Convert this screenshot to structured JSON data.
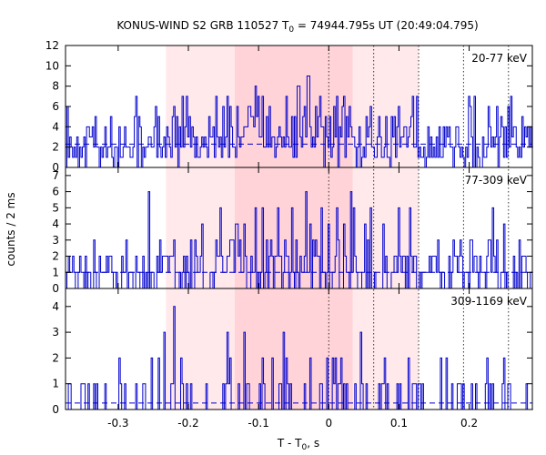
{
  "chart_data": {
    "type": "line",
    "title": "KONUS-WIND S2 GRB 110527 T0 = 74944.795s UT (20:49:04.795)",
    "title_parts": {
      "prefix": "KONUS-WIND S2 GRB 110527 T",
      "sub": "0",
      "suffix": " = 74944.795s UT (20:49:04.795)"
    },
    "xlabel_parts": {
      "prefix": "T - T",
      "sub": "0",
      "suffix": ", s"
    },
    "ylabel": "counts / 2 ms",
    "xlim": [
      -0.375,
      0.29
    ],
    "x_ticks": [
      -0.3,
      -0.2,
      -0.1,
      0,
      0.1,
      0.2
    ],
    "x_tick_labels": [
      "-0.3",
      "-0.2",
      "-0.1",
      "0",
      "0.1",
      "0.2"
    ],
    "bin_width": 0.002,
    "shaded_regions": [
      {
        "from": -0.232,
        "to": 0.128,
        "intensity": "light"
      },
      {
        "from": -0.134,
        "to": 0.034,
        "intensity": "dark"
      }
    ],
    "vertical_lines": [
      0,
      0.064,
      0.128,
      0.192,
      0.256
    ],
    "series_color": "#0000cc",
    "panels": [
      {
        "label": "20-77 keV",
        "ylim": [
          0,
          12
        ],
        "y_ticks": [
          0,
          2,
          4,
          6,
          8,
          10,
          12
        ],
        "background": 2.3,
        "peaks": [
          {
            "x": -0.22,
            "y": 6
          },
          {
            "x": -0.16,
            "y": 7
          },
          {
            "x": -0.15,
            "y": 6
          },
          {
            "x": -0.095,
            "y": 7
          },
          {
            "x": -0.06,
            "y": 7
          },
          {
            "x": -0.045,
            "y": 8
          },
          {
            "x": -0.03,
            "y": 9
          },
          {
            "x": -0.012,
            "y": 7
          },
          {
            "x": 0.012,
            "y": 7
          },
          {
            "x": 0.03,
            "y": 6
          },
          {
            "x": 0.06,
            "y": 6
          },
          {
            "x": 0.12,
            "y": 7
          },
          {
            "x": 0.2,
            "y": 7
          },
          {
            "x": 0.24,
            "y": 6
          }
        ]
      },
      {
        "label": "77-309 keV",
        "ylim": [
          0,
          7.5
        ],
        "y_ticks": [
          0,
          1,
          2,
          3,
          4,
          5,
          6,
          7
        ],
        "background": 1.0,
        "peaks": [
          {
            "x": -0.24,
            "y": 3
          },
          {
            "x": -0.18,
            "y": 4
          },
          {
            "x": -0.16,
            "y": 3
          },
          {
            "x": -0.12,
            "y": 4
          },
          {
            "x": -0.095,
            "y": 5
          },
          {
            "x": -0.072,
            "y": 5
          },
          {
            "x": -0.052,
            "y": 5
          },
          {
            "x": -0.032,
            "y": 6
          },
          {
            "x": -0.01,
            "y": 5
          },
          {
            "x": 0.012,
            "y": 5
          },
          {
            "x": 0.032,
            "y": 6
          },
          {
            "x": 0.06,
            "y": 5
          },
          {
            "x": 0.078,
            "y": 4
          },
          {
            "x": 0.1,
            "y": 5
          },
          {
            "x": 0.116,
            "y": 5
          },
          {
            "x": 0.155,
            "y": 3
          },
          {
            "x": 0.25,
            "y": 4
          }
        ]
      },
      {
        "label": "309-1169 keV",
        "ylim": [
          0,
          4.7
        ],
        "y_ticks": [
          0,
          1,
          2,
          3,
          4
        ],
        "background": 0.25,
        "peaks": [
          {
            "x": -0.235,
            "y": 3
          },
          {
            "x": -0.22,
            "y": 4
          },
          {
            "x": -0.12,
            "y": 3
          },
          {
            "x": -0.095,
            "y": 2
          },
          {
            "x": -0.06,
            "y": 2
          },
          {
            "x": -0.025,
            "y": 2
          },
          {
            "x": 0.01,
            "y": 2
          },
          {
            "x": 0.045,
            "y": 3
          },
          {
            "x": 0.08,
            "y": 2
          },
          {
            "x": 0.16,
            "y": 2
          },
          {
            "x": 0.25,
            "y": 2
          }
        ]
      }
    ]
  }
}
